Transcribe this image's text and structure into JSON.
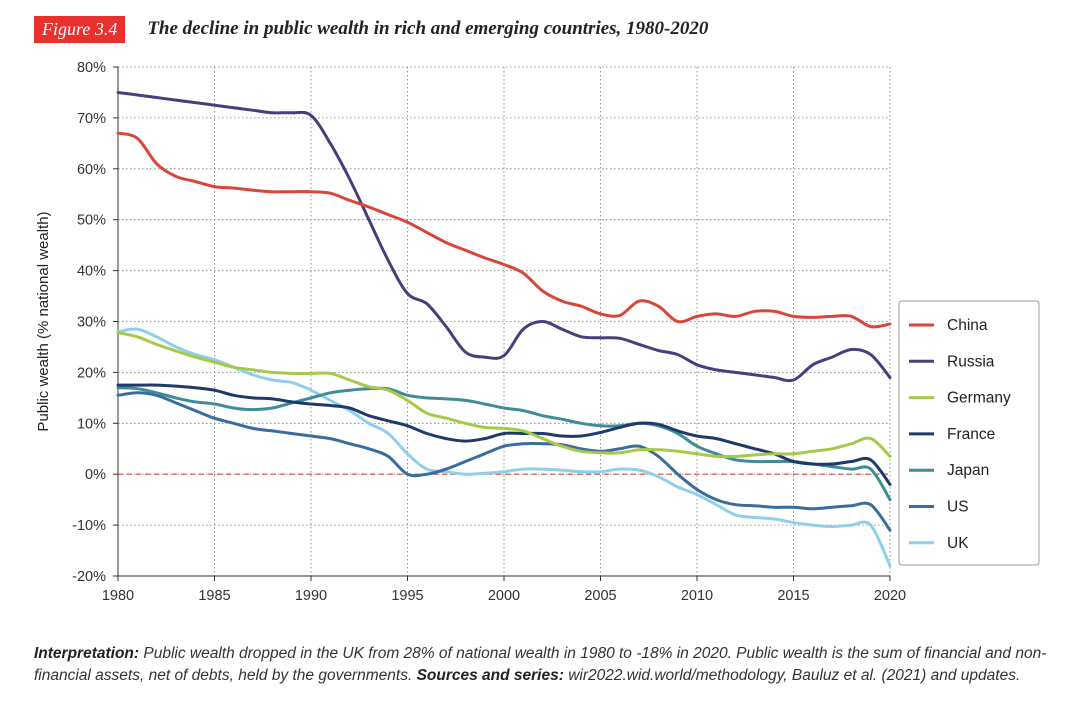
{
  "figure": {
    "badge": "Figure 3.4",
    "title": "The decline in public wealth in rich and emerging countries, 1980-2020"
  },
  "note": {
    "interp_label": "Interpretation:",
    "interp_text": " Public wealth dropped in the UK from 28% of national wealth in 1980 to -18% in 2020. Public wealth is the sum of financial and non-financial assets, net of debts, held by the governments. ",
    "sources_label": "Sources and series:",
    "sources_text": " wir2022.wid.world/methodology, Bauluz et al. (2021) and updates."
  },
  "chart_data": {
    "type": "line",
    "title": "The decline in public wealth in rich and emerging countries, 1980-2020",
    "xlabel": "",
    "ylabel": "Public wealth (% national wealth)",
    "xlim": [
      1980,
      2020
    ],
    "ylim": [
      -20,
      80
    ],
    "x_ticks": [
      1980,
      1985,
      1990,
      1995,
      2000,
      2005,
      2010,
      2015,
      2020
    ],
    "y_ticks": [
      -20,
      -10,
      0,
      10,
      20,
      30,
      40,
      50,
      60,
      70,
      80
    ],
    "y_tick_labels": [
      "-20%",
      "-10%",
      "0%",
      "10%",
      "20%",
      "30%",
      "40%",
      "50%",
      "60%",
      "70%",
      "80%"
    ],
    "grid": true,
    "zero_line": true,
    "legend_position": "right",
    "x": [
      1980,
      1981,
      1982,
      1983,
      1984,
      1985,
      1986,
      1987,
      1988,
      1989,
      1990,
      1991,
      1992,
      1993,
      1994,
      1995,
      1996,
      1997,
      1998,
      1999,
      2000,
      2001,
      2002,
      2003,
      2004,
      2005,
      2006,
      2007,
      2008,
      2009,
      2010,
      2011,
      2012,
      2013,
      2014,
      2015,
      2016,
      2017,
      2018,
      2019,
      2020
    ],
    "series": [
      {
        "name": "China",
        "color": "#d9453a",
        "values": [
          67,
          66,
          61,
          58.5,
          57.5,
          56.5,
          56.2,
          55.8,
          55.5,
          55.5,
          55.5,
          55.2,
          53.8,
          52.5,
          51,
          49.5,
          47.5,
          45.5,
          44,
          42.5,
          41.2,
          39.5,
          36,
          34,
          33,
          31.5,
          31.2,
          34,
          33,
          30,
          31,
          31.5,
          31,
          32,
          32,
          31,
          30.8,
          31,
          31,
          29,
          29.5
        ]
      },
      {
        "name": "Russia",
        "color": "#4a3d7c",
        "values": [
          75,
          74.5,
          74,
          73.5,
          73,
          72.5,
          72,
          71.5,
          71,
          71,
          70.5,
          65,
          58,
          50,
          42,
          35.5,
          33.5,
          29,
          24,
          23,
          23.3,
          28.5,
          30,
          28.5,
          27,
          26.8,
          26.7,
          25.5,
          24.3,
          23.5,
          21.5,
          20.5,
          20,
          19.5,
          19,
          18.5,
          21.5,
          23,
          24.5,
          23.5,
          19
        ]
      },
      {
        "name": "Germany",
        "color": "#a6c94a",
        "values": [
          27.8,
          27,
          25.5,
          24.2,
          23,
          22,
          21,
          20.5,
          20,
          19.8,
          19.8,
          19.8,
          18.5,
          17.2,
          16.5,
          14.5,
          12,
          11,
          10,
          9.2,
          9,
          8.5,
          7,
          5.5,
          4.5,
          4.2,
          4.2,
          4.8,
          4.8,
          4.5,
          4,
          3.5,
          3.5,
          3.8,
          4,
          4,
          4.5,
          5,
          6,
          7,
          3.5
        ]
      },
      {
        "name": "France",
        "color": "#1e3a6a",
        "values": [
          17.5,
          17.5,
          17.5,
          17.3,
          17,
          16.5,
          15.5,
          15,
          14.8,
          14.2,
          13.8,
          13.5,
          13,
          11.5,
          10.5,
          9.5,
          8,
          7,
          6.5,
          7,
          8,
          8,
          8,
          7.5,
          7.5,
          8.2,
          9.2,
          10,
          9.8,
          8.5,
          7.5,
          7,
          6,
          5,
          4,
          2.5,
          2,
          2,
          2.5,
          2.8,
          -2
        ]
      },
      {
        "name": "Japan",
        "color": "#3f8c98",
        "values": [
          17,
          16.8,
          16,
          15,
          14.2,
          13.8,
          13,
          12.7,
          13,
          14,
          15,
          16,
          16.5,
          16.8,
          16.8,
          15.5,
          15,
          14.8,
          14.5,
          13.8,
          13,
          12.5,
          11.5,
          10.8,
          10,
          9.5,
          9.5,
          10,
          9.5,
          8,
          5.5,
          4,
          2.8,
          2.5,
          2.5,
          2.5,
          2,
          1.5,
          1,
          1,
          -5
        ]
      },
      {
        "name": "US",
        "color": "#3a6c9e",
        "values": [
          15.5,
          16,
          15.5,
          14,
          12.5,
          11,
          10,
          9,
          8.5,
          8,
          7.5,
          7,
          6,
          5,
          3.5,
          0,
          0,
          1,
          2.5,
          4,
          5.5,
          6,
          6,
          5.8,
          5,
          4.5,
          5,
          5.5,
          3.5,
          0,
          -3,
          -5,
          -6,
          -6.2,
          -6.5,
          -6.5,
          -6.8,
          -6.5,
          -6.2,
          -6,
          -11
        ]
      },
      {
        "name": "UK",
        "color": "#8dd0e8",
        "values": [
          28,
          28.5,
          27,
          25,
          23.5,
          22.5,
          21,
          19.5,
          18.5,
          18,
          16.5,
          14.5,
          12.5,
          10,
          8,
          4,
          1,
          0.5,
          0,
          0.2,
          0.5,
          1,
          1,
          0.8,
          0.5,
          0.5,
          1,
          0.8,
          -0.5,
          -2.5,
          -4,
          -6,
          -8,
          -8.5,
          -8.8,
          -9.5,
          -10,
          -10.3,
          -10,
          -10,
          -18
        ]
      }
    ]
  }
}
